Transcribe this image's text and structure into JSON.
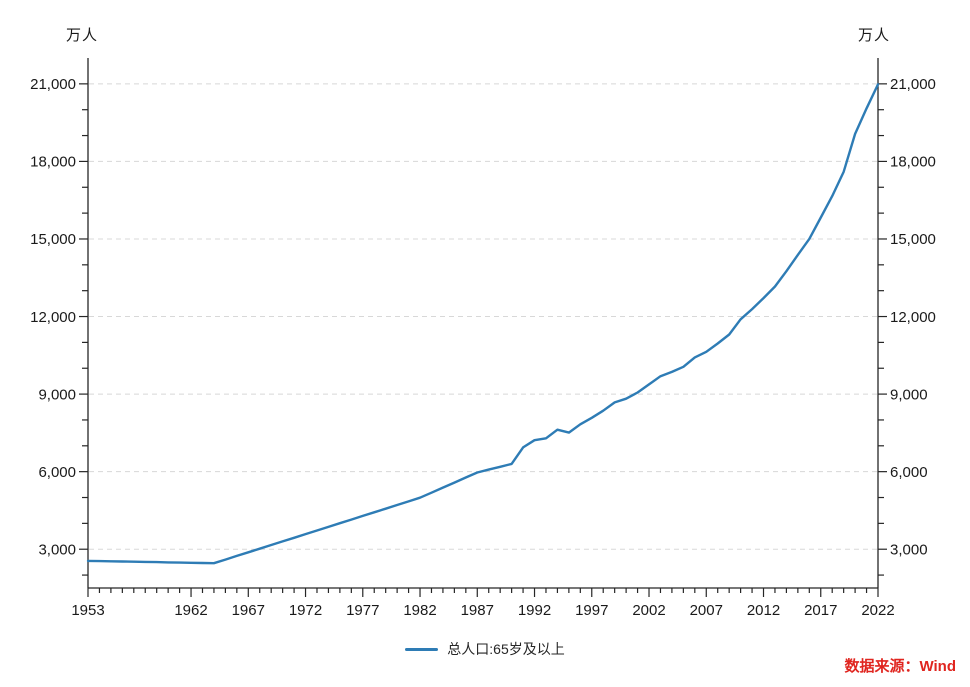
{
  "header": {
    "unit_left": "万人",
    "unit_right": "万人"
  },
  "legend": {
    "label": "总人口:65岁及以上"
  },
  "footer": {
    "source": "数据来源：Wind"
  },
  "colors": {
    "line": "#2e7cb5",
    "grid": "#d8d8d8",
    "axis": "#262626",
    "tick_text": "#1a1a1a",
    "source_red": "#e0251f",
    "background": "#ffffff"
  },
  "chart_data": {
    "type": "line",
    "title": "",
    "ylabel": "万人",
    "xlabel": "",
    "grid": "horizontal-dashed",
    "legend_position": "bottom-center",
    "xlim": [
      1953,
      2022
    ],
    "ylim": [
      1500,
      22000
    ],
    "y_ticks_major": [
      3000,
      6000,
      9000,
      12000,
      15000,
      18000,
      21000
    ],
    "y_minor_step": 1000,
    "x_tick_labels": [
      1953,
      1962,
      1967,
      1972,
      1977,
      1982,
      1987,
      1992,
      1997,
      2002,
      2007,
      2012,
      2017,
      2022
    ],
    "series": [
      {
        "name": "总人口:65岁及以上",
        "color": "#2e7cb5",
        "x": [
          1953,
          1954,
          1955,
          1956,
          1957,
          1958,
          1959,
          1960,
          1961,
          1962,
          1963,
          1964,
          1965,
          1966,
          1967,
          1968,
          1969,
          1970,
          1971,
          1972,
          1973,
          1974,
          1975,
          1976,
          1977,
          1978,
          1979,
          1980,
          1981,
          1982,
          1983,
          1984,
          1985,
          1986,
          1987,
          1988,
          1989,
          1990,
          1991,
          1992,
          1993,
          1994,
          1995,
          1996,
          1997,
          1998,
          1999,
          2000,
          2001,
          2002,
          2003,
          2004,
          2005,
          2006,
          2007,
          2008,
          2009,
          2010,
          2011,
          2012,
          2013,
          2014,
          2015,
          2016,
          2017,
          2018,
          2019,
          2020,
          2021,
          2022
        ],
        "values": [
          2550,
          2542,
          2533,
          2525,
          2517,
          2508,
          2500,
          2492,
          2483,
          2475,
          2467,
          2458,
          2599,
          2740,
          2880,
          3021,
          3162,
          3303,
          3443,
          3584,
          3725,
          3865,
          4006,
          4147,
          4287,
          4428,
          4569,
          4710,
          4850,
          4991,
          5186,
          5382,
          5577,
          5773,
          5968,
          6078,
          6189,
          6299,
          6938,
          7218,
          7289,
          7622,
          7510,
          7833,
          8085,
          8359,
          8679,
          8821,
          9062,
          9377,
          9692,
          9857,
          10055,
          10419,
          10636,
          10956,
          11307,
          11894,
          12288,
          12714,
          13161,
          13755,
          14386,
          15003,
          15831,
          16658,
          17603,
          19064,
          20056,
          20978
        ]
      }
    ],
    "source": "数据来源：Wind"
  }
}
